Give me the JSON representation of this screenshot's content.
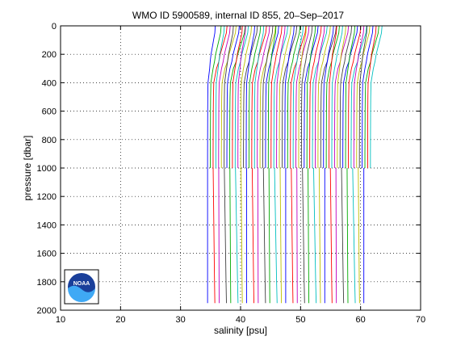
{
  "chart_data": {
    "type": "line",
    "title": "WMO ID 5900589, internal ID 855, 20–Sep–2017",
    "xlabel": "salinity [psu]",
    "ylabel": "pressure [dbar]",
    "xlim": [
      10,
      70
    ],
    "ylim": [
      2000,
      0
    ],
    "y_reversed": true,
    "xticks": [
      "10",
      "20",
      "30",
      "40",
      "50",
      "60",
      "70"
    ],
    "yticks": [
      "0",
      "200",
      "400",
      "600",
      "800",
      "1000",
      "1200",
      "1400",
      "1600",
      "1800",
      "2000"
    ],
    "grid": true,
    "waterfall": {
      "profile_count": 60,
      "first_offset_psu": 34.5,
      "offset_step_psu": 0.46,
      "deep_profile_count": 29,
      "deep_offset_step_psu": 0.93,
      "colors": [
        "#0000ff",
        "#00aa00",
        "#ff0000",
        "#00bfbf",
        "#bf00bf",
        "#bfbf00",
        "#404040"
      ]
    },
    "base_profile": {
      "pressure": [
        0,
        50,
        100,
        150,
        200,
        250,
        300,
        350,
        400,
        500,
        600,
        700,
        800,
        900,
        1000
      ],
      "salinity": [
        2.0,
        1.9,
        1.6,
        1.3,
        1.0,
        0.8,
        0.5,
        0.3,
        0.1,
        0.05,
        0.03,
        0.02,
        0.01,
        0.0,
        0.0
      ]
    },
    "deep_profile": {
      "pressure": [
        1000,
        1200,
        1400,
        1600,
        1800,
        1950
      ],
      "salinity": [
        0.0,
        0.05,
        0.1,
        0.15,
        0.2,
        0.25
      ]
    }
  },
  "logo": {
    "text": "NOAA"
  }
}
